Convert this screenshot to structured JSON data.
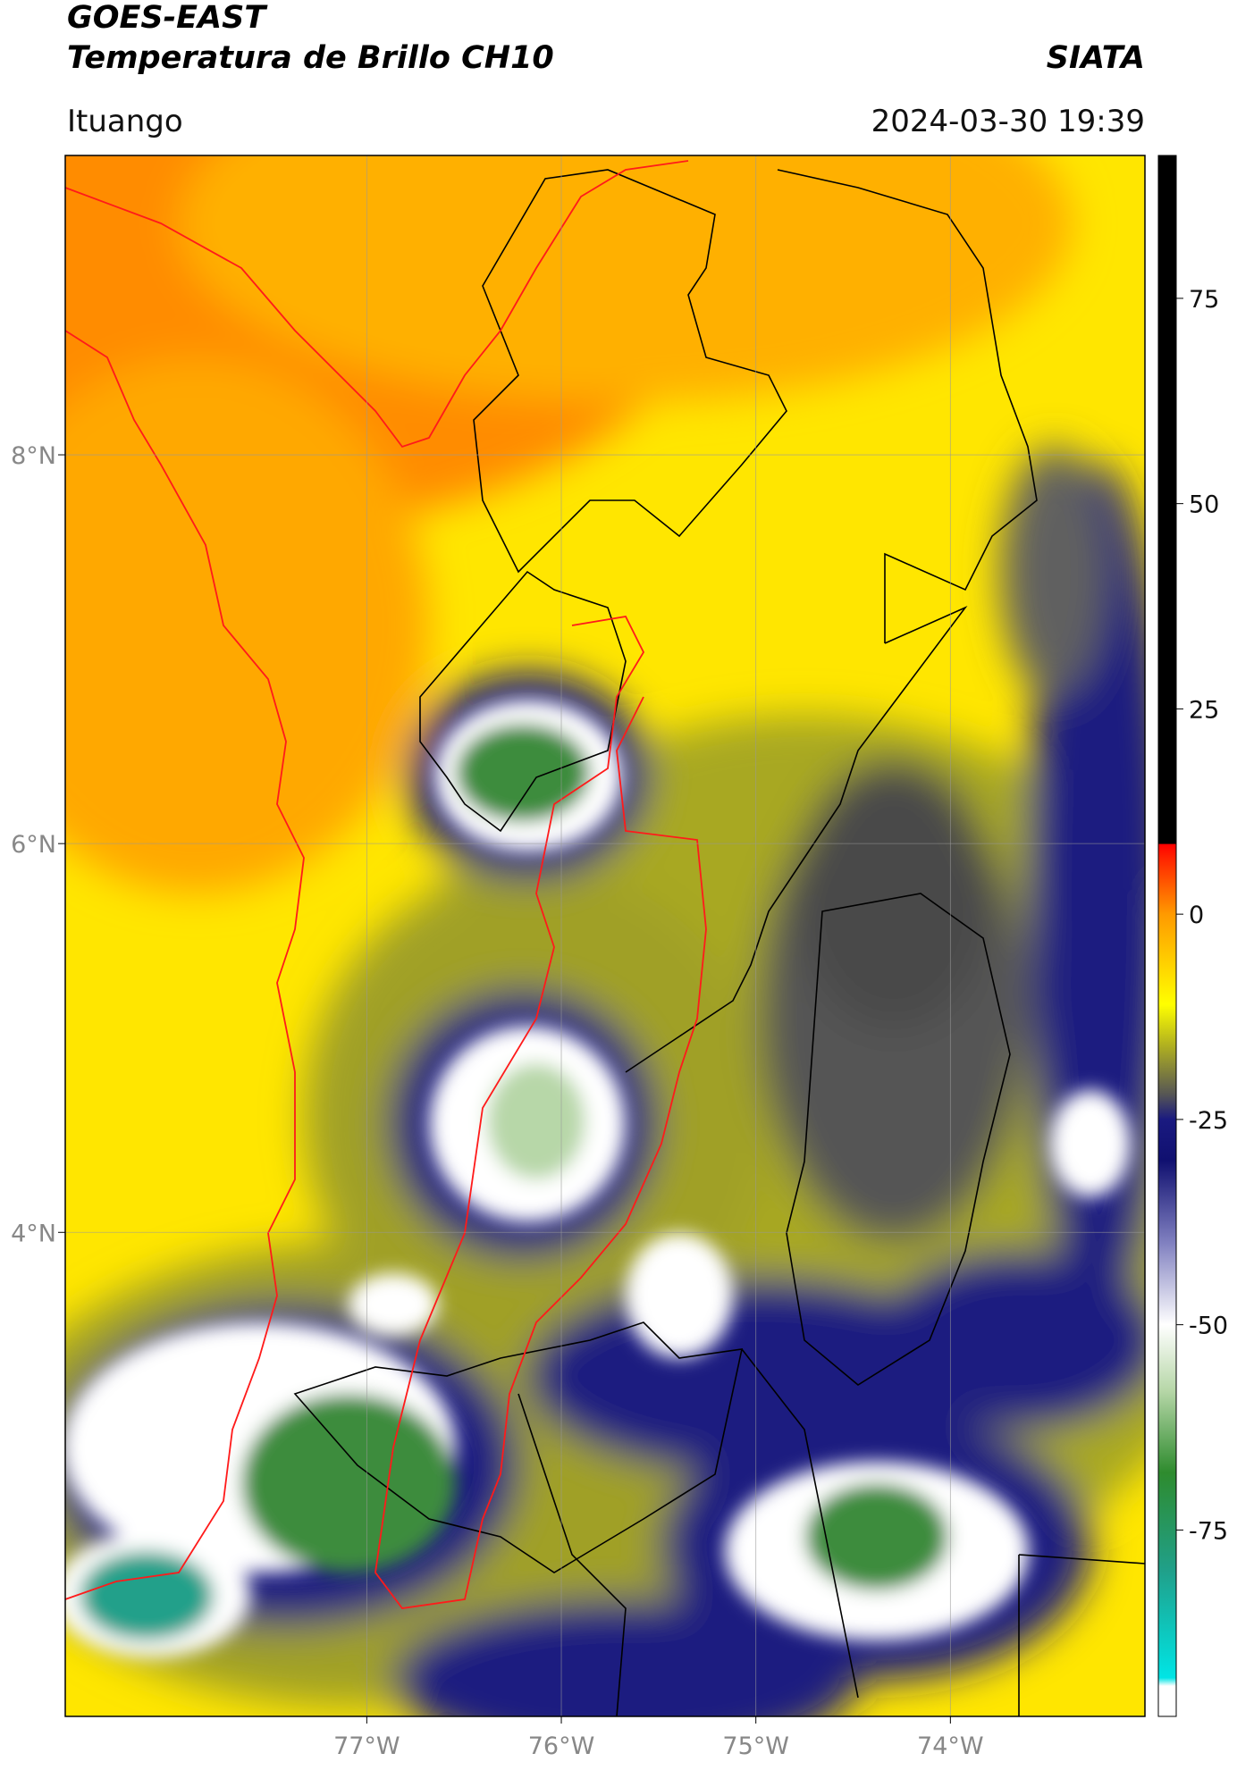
{
  "header": {
    "title": "GOES-EAST",
    "subtitle": "Temperatura de Brillo CH10",
    "source": "SIATA",
    "location": "Ituango",
    "datetime": "2024-03-30 19:39"
  },
  "map": {
    "lon_range": [
      -78.55,
      -73.0
    ],
    "lat_range": [
      1.51,
      9.54
    ],
    "lon_ticks": [
      {
        "value": -77,
        "label": "77°W"
      },
      {
        "value": -76,
        "label": "76°W"
      },
      {
        "value": -75,
        "label": "75°W"
      },
      {
        "value": -74,
        "label": "74°W"
      }
    ],
    "lat_ticks": [
      {
        "value": 8,
        "label": "8°N"
      },
      {
        "value": 6,
        "label": "6°N"
      },
      {
        "value": 4,
        "label": "4°N"
      }
    ],
    "grid": true
  },
  "colorbar": {
    "range": [
      -97.7,
      92.4
    ],
    "ticks": [
      75,
      50,
      25,
      0,
      -25,
      -50,
      -75
    ],
    "stops": [
      {
        "value": -97.7,
        "color": "#ffffff"
      },
      {
        "value": -94,
        "color": "#ffffff"
      },
      {
        "value": -93,
        "color": "#00e5e5"
      },
      {
        "value": -80,
        "color": "#20a08a"
      },
      {
        "value": -68,
        "color": "#2e8b2e"
      },
      {
        "value": -58,
        "color": "#b7d7a8"
      },
      {
        "value": -50,
        "color": "#ffffff"
      },
      {
        "value": -40,
        "color": "#8080c0"
      },
      {
        "value": -30,
        "color": "#101070"
      },
      {
        "value": -25,
        "color": "#1a1a80"
      },
      {
        "value": -22,
        "color": "#555555"
      },
      {
        "value": -16,
        "color": "#b0b020"
      },
      {
        "value": -11,
        "color": "#ffff00"
      },
      {
        "value": 0,
        "color": "#ff9a00"
      },
      {
        "value": 7,
        "color": "#ff2000"
      },
      {
        "value": 8.5,
        "color": "#ff0000"
      },
      {
        "value": 8.6,
        "color": "#000000"
      },
      {
        "value": 92.4,
        "color": "#000000"
      }
    ]
  }
}
